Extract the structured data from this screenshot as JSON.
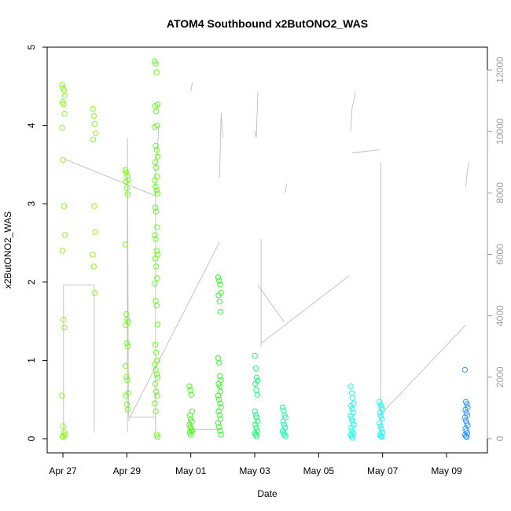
{
  "chart_data": {
    "type": "scatter",
    "title": "ATOM4 Southbound x2ButONO2_WAS",
    "xlabel": "Date",
    "ylabel": "x2ButONO2_WAS",
    "ylim": [
      0,
      5
    ],
    "y2lim": [
      0,
      12000
    ],
    "yticks": [
      "0",
      "1",
      "2",
      "3",
      "4",
      "5"
    ],
    "y2ticks": [
      "0",
      "2000",
      "4000",
      "6000",
      "8000",
      "10000",
      "12000"
    ],
    "xtick_labels": [
      "Apr 27",
      "Apr 29",
      "May 01",
      "May 03",
      "May 05",
      "May 07",
      "May 09"
    ],
    "xtick_days": [
      0,
      2,
      4,
      6,
      8,
      10,
      12
    ],
    "xlim_days": [
      -0.5,
      13.0
    ],
    "point_color_scale": [
      "#7fff00",
      "#00ff00",
      "#00ffff",
      "#0080ff"
    ],
    "line_color": "#bebebe",
    "series": [
      {
        "type": "points",
        "clusters": [
          {
            "day": 0.02,
            "color": "#7cfc00",
            "values": [
              4.52,
              4.48,
              4.45,
              4.38,
              4.3,
              4.27,
              4.15,
              3.97,
              3.56,
              2.97,
              2.6,
              2.4,
              1.52,
              1.42,
              0.55,
              0.16,
              0.08,
              0.05,
              0.03,
              0.02
            ]
          },
          {
            "day": 0.98,
            "color": "#7cfc00",
            "values": [
              4.21,
              4.12,
              4.02,
              3.9,
              3.82,
              2.97,
              2.64,
              2.35,
              2.2,
              1.86
            ]
          },
          {
            "day": 2.0,
            "color": "#66ff00",
            "values": [
              3.43,
              3.4,
              3.36,
              3.3,
              3.28,
              3.2,
              3.12,
              2.48,
              1.59,
              1.52,
              1.49,
              1.45,
              1.22,
              1.18,
              0.93,
              0.79,
              0.75,
              0.58,
              0.55,
              0.44,
              0.37
            ]
          },
          {
            "day": 2.92,
            "color": "#55ff00",
            "values": [
              4.82,
              4.79,
              4.68,
              4.27,
              4.25,
              4.18,
              4.0,
              3.98,
              3.74,
              3.69,
              3.6,
              3.53,
              3.46,
              3.35,
              3.3,
              3.22,
              3.17,
              3.13,
              2.95,
              2.9,
              2.7,
              2.6,
              2.55,
              2.4,
              2.35,
              2.3,
              2.2,
              2.05,
              1.98,
              1.76,
              1.7,
              1.46,
              1.2,
              1.1,
              1.0,
              0.95,
              0.88,
              0.82,
              0.78,
              0.7,
              0.6,
              0.55,
              0.45,
              0.35,
              0.05,
              0.02
            ]
          },
          {
            "day": 4.0,
            "color": "#33ff00",
            "values": [
              0.67,
              0.62,
              0.56,
              0.35,
              0.3,
              0.25,
              0.22,
              0.18,
              0.15,
              0.12,
              0.1,
              0.08,
              0.05
            ]
          },
          {
            "day": 4.9,
            "color": "#22ff11",
            "values": [
              2.06,
              2.02,
              1.97,
              1.86,
              1.83,
              1.75,
              1.62,
              1.03,
              0.97,
              0.8,
              0.75,
              0.7,
              0.67,
              0.6,
              0.55,
              0.5,
              0.45,
              0.4,
              0.35,
              0.3,
              0.25,
              0.2,
              0.15,
              0.1,
              0.05
            ]
          },
          {
            "day": 6.05,
            "color": "#00ff66",
            "values": [
              1.06,
              0.9,
              0.78,
              0.74,
              0.7,
              0.62,
              0.56,
              0.35,
              0.3,
              0.27,
              0.22,
              0.18,
              0.14,
              0.1,
              0.07,
              0.05,
              0.03
            ]
          },
          {
            "day": 6.92,
            "color": "#00ff99",
            "values": [
              0.4,
              0.36,
              0.3,
              0.27,
              0.22,
              0.18,
              0.14,
              0.1,
              0.07,
              0.05,
              0.03
            ]
          },
          {
            "day": 9.05,
            "color": "#00ffee",
            "values": [
              0.67,
              0.58,
              0.52,
              0.45,
              0.42,
              0.38,
              0.33,
              0.29,
              0.25,
              0.22,
              0.18,
              0.14,
              0.1,
              0.07,
              0.05,
              0.03,
              0.01
            ]
          },
          {
            "day": 9.95,
            "color": "#00ffff",
            "values": [
              0.47,
              0.43,
              0.4,
              0.37,
              0.33,
              0.29,
              0.25,
              0.2,
              0.16,
              0.12,
              0.08,
              0.05,
              0.03,
              0.02
            ]
          },
          {
            "day": 12.62,
            "color": "#1e90ff",
            "values": [
              0.88,
              0.47,
              0.44,
              0.4,
              0.37,
              0.33,
              0.3,
              0.27,
              0.23,
              0.2,
              0.17,
              0.13,
              0.1,
              0.07,
              0.05,
              0.03,
              0.02
            ]
          }
        ]
      },
      {
        "type": "line",
        "axis": "right",
        "segments": [
          {
            "points": [
              [
                0.02,
                0
              ],
              [
                0.02,
                5000
              ],
              [
                0.98,
                5000
              ],
              [
                0.98,
                200
              ]
            ]
          },
          {
            "points": [
              [
                0.05,
                9100
              ],
              [
                2.9,
                7900
              ]
            ]
          },
          {
            "points": [
              [
                2.02,
                200
              ],
              [
                2.02,
                9800
              ],
              [
                2.05,
                700
              ],
              [
                2.9,
                700
              ],
              [
                2.9,
                200
              ]
            ]
          },
          {
            "points": [
              [
                2.05,
                600
              ],
              [
                4.9,
                6400
              ]
            ]
          },
          {
            "points": [
              [
                2.9,
                300
              ],
              [
                2.9,
                8800
              ],
              [
                2.95,
                9300
              ],
              [
                3.0,
                10200
              ]
            ]
          },
          {
            "points": [
              [
                4.0,
                11300
              ],
              [
                4.05,
                11600
              ]
            ]
          },
          {
            "points": [
              [
                4.0,
                300
              ],
              [
                4.9,
                300
              ]
            ]
          },
          {
            "points": [
              [
                4.9,
                8500
              ],
              [
                4.95,
                10600
              ],
              [
                5.0,
                9800
              ]
            ]
          },
          {
            "points": [
              [
                6.0,
                10000
              ],
              [
                6.05,
                9800
              ],
              [
                6.1,
                11300
              ]
            ]
          },
          {
            "points": [
              [
                6.2,
                3000
              ],
              [
                6.2,
                6500
              ]
            ]
          },
          {
            "points": [
              [
                6.1,
                5000
              ],
              [
                6.92,
                3800
              ]
            ]
          },
          {
            "points": [
              [
                6.2,
                3100
              ],
              [
                8.95,
                5300
              ]
            ]
          },
          {
            "points": [
              [
                6.95,
                8000
              ],
              [
                7.0,
                8300
              ]
            ]
          },
          {
            "points": [
              [
                9.0,
                10000
              ],
              [
                9.05,
                10800
              ],
              [
                9.1,
                11000
              ],
              [
                9.15,
                11300
              ]
            ]
          },
          {
            "points": [
              [
                9.05,
                9300
              ],
              [
                9.9,
                9400
              ]
            ]
          },
          {
            "points": [
              [
                9.95,
                200
              ],
              [
                9.95,
                9000
              ]
            ]
          },
          {
            "points": [
              [
                9.95,
                800
              ],
              [
                12.6,
                3700
              ]
            ]
          },
          {
            "points": [
              [
                12.6,
                8200
              ],
              [
                12.65,
                8700
              ],
              [
                12.7,
                9000
              ]
            ]
          }
        ]
      }
    ],
    "grid": false,
    "legend": "none"
  }
}
